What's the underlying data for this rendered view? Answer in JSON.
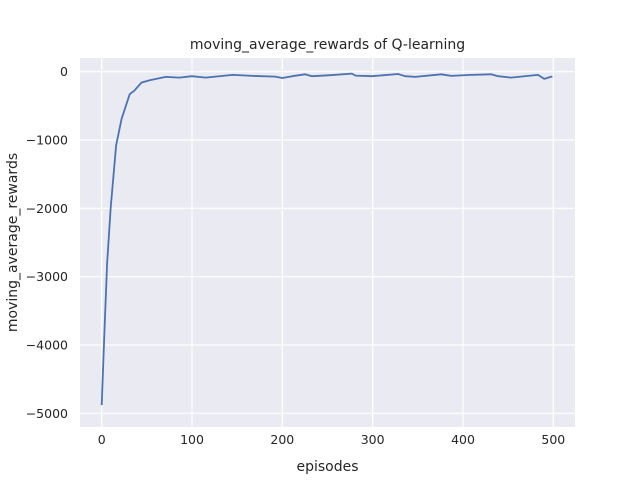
{
  "chart_data": {
    "type": "line",
    "title": "moving_average_rewards of Q-learning",
    "xlabel": "episodes",
    "ylabel": "moving_average_rewards",
    "xlim": [
      -24,
      524
    ],
    "ylim": [
      -5200,
      200
    ],
    "xticks": [
      0,
      100,
      200,
      300,
      400,
      500
    ],
    "yticks": [
      0,
      -1000,
      -2000,
      -3000,
      -4000,
      -5000
    ],
    "xtick_labels": [
      "0",
      "100",
      "200",
      "300",
      "400",
      "500"
    ],
    "ytick_labels": [
      "0",
      "−1000",
      "−2000",
      "−3000",
      "−4000",
      "−5000"
    ],
    "grid": true,
    "background_color": "#EAEAF2",
    "line_color": "#4C72B0",
    "series": [
      {
        "x": [
          0,
          3,
          6,
          10,
          16,
          22,
          31,
          36,
          44,
          53,
          71,
          86,
          100,
          115,
          145,
          167,
          192,
          200,
          211,
          225,
          233,
          251,
          277,
          281,
          299,
          328,
          336,
          347,
          376,
          387,
          409,
          431,
          439,
          453,
          483,
          490,
          497,
          499
        ],
        "y": [
          -4880,
          -3820,
          -2810,
          -1990,
          -1080,
          -690,
          -330,
          -280,
          -160,
          -125,
          -77,
          -87,
          -67,
          -87,
          -48,
          -62,
          -72,
          -92,
          -67,
          -39,
          -67,
          -53,
          -29,
          -58,
          -67,
          -34,
          -67,
          -77,
          -39,
          -62,
          -48,
          -39,
          -67,
          -87,
          -48,
          -106,
          -77,
          -72
        ]
      }
    ]
  }
}
